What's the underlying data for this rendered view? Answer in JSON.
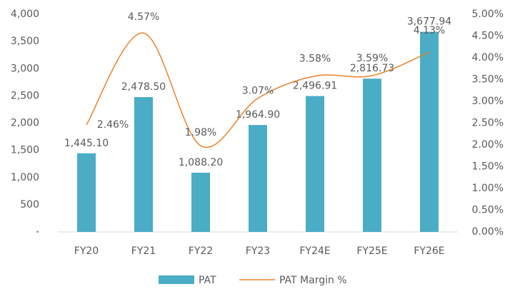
{
  "chart_data": {
    "type": "bar_line",
    "categories": [
      "FY20",
      "FY21",
      "FY22",
      "FY23",
      "FY24E",
      "FY25E",
      "FY26E"
    ],
    "series": [
      {
        "name": "PAT",
        "type": "bar",
        "color": "#4bacc6",
        "values": [
          1445.1,
          2478.5,
          1088.2,
          1964.9,
          2496.91,
          2816.73,
          3677.94
        ],
        "value_labels": [
          "1,445.10",
          "2,478.50",
          "1,088.20",
          "1,964.90",
          "2,496.91",
          "2,816.73",
          "3,677.94"
        ]
      },
      {
        "name": "PAT Margin %",
        "type": "line",
        "axis": "y2",
        "color": "#e8822a",
        "values": [
          2.46,
          4.57,
          1.98,
          3.07,
          3.58,
          3.59,
          4.13
        ],
        "value_labels": [
          "2.46%",
          "4.57%",
          "1.98%",
          "3.07%",
          "3.58%",
          "3.59%",
          "4.13%"
        ]
      }
    ],
    "ylim": [
      0,
      4000
    ],
    "yticks": [
      {
        "value": 0,
        "label": "-"
      },
      500,
      {
        "value": 1000,
        "label": "1,000"
      },
      {
        "value": 1500,
        "label": "1,500"
      },
      {
        "value": 2000,
        "label": "2,000"
      },
      {
        "value": 2500,
        "label": "2,500"
      },
      {
        "value": 3000,
        "label": "3,000"
      },
      {
        "value": 3500,
        "label": "3,500"
      },
      {
        "value": 4000,
        "label": "4,000"
      }
    ],
    "y2lim": [
      0,
      5
    ],
    "y2ticks": [
      {
        "value": 0,
        "label": "0.00%"
      },
      {
        "value": 0.5,
        "label": "0.50%"
      },
      {
        "value": 1,
        "label": "1.00%"
      },
      {
        "value": 1.5,
        "label": "1.50%"
      },
      {
        "value": 2,
        "label": "2.00%"
      },
      {
        "value": 2.5,
        "label": "2.50%"
      },
      {
        "value": 3,
        "label": "3.00%"
      },
      {
        "value": 3.5,
        "label": "3.50%"
      },
      {
        "value": 4,
        "label": "4.00%"
      },
      {
        "value": 4.5,
        "label": "4.50%"
      },
      {
        "value": 5,
        "label": "5.00%"
      }
    ],
    "legend": "bottom"
  }
}
